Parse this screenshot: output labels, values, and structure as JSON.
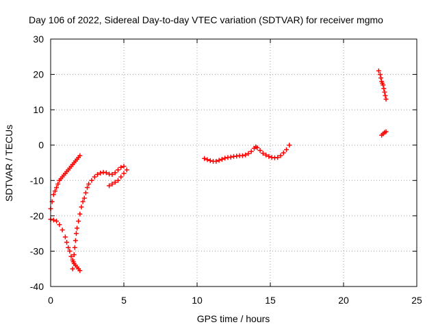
{
  "chart_data": {
    "type": "scatter",
    "title": "Day 106 of 2022, Sidereal Day-to-day VTEC variation (SDTVAR) for receiver mgmo",
    "xlabel": "GPS time / hours",
    "ylabel": "SDTVAR / TECUs",
    "xlim": [
      0,
      25
    ],
    "ylim": [
      -40,
      30
    ],
    "xticks": [
      "0",
      "5",
      "10",
      "15",
      "20",
      "25"
    ],
    "yticks": [
      "30",
      "20",
      "10",
      "0",
      "-10",
      "-20",
      "-30",
      "-40"
    ],
    "grid": true,
    "marker": "plus",
    "color": "#ff0000",
    "series": [
      {
        "points": [
          [
            0.0,
            -18
          ],
          [
            0.1,
            -16
          ],
          [
            0.2,
            -14
          ],
          [
            0.3,
            -13
          ],
          [
            0.4,
            -12
          ],
          [
            0.5,
            -11
          ],
          [
            0.6,
            -10
          ],
          [
            0.7,
            -9.5
          ],
          [
            0.8,
            -9
          ],
          [
            0.9,
            -8.5
          ],
          [
            1.0,
            -8
          ],
          [
            1.1,
            -7.5
          ],
          [
            1.2,
            -7
          ],
          [
            1.3,
            -6.5
          ],
          [
            1.4,
            -6
          ],
          [
            1.5,
            -5.5
          ],
          [
            1.6,
            -5
          ],
          [
            1.7,
            -4.5
          ],
          [
            1.8,
            -4
          ],
          [
            1.9,
            -3.5
          ],
          [
            2.0,
            -3
          ]
        ]
      },
      {
        "points": [
          [
            0.0,
            -21
          ],
          [
            0.2,
            -21.2
          ],
          [
            0.4,
            -21.5
          ],
          [
            0.6,
            -22.5
          ],
          [
            0.8,
            -24
          ],
          [
            1.0,
            -26
          ],
          [
            1.1,
            -27.5
          ],
          [
            1.2,
            -29
          ],
          [
            1.3,
            -30
          ],
          [
            1.4,
            -31.5
          ],
          [
            1.5,
            -32.5
          ],
          [
            1.6,
            -33.5
          ],
          [
            1.7,
            -34
          ],
          [
            1.8,
            -34.5
          ],
          [
            1.9,
            -35
          ],
          [
            2.0,
            -35.5
          ]
        ]
      },
      {
        "points": [
          [
            1.5,
            -35
          ],
          [
            1.55,
            -33
          ],
          [
            1.6,
            -31
          ],
          [
            1.65,
            -29
          ],
          [
            1.7,
            -27
          ],
          [
            1.75,
            -25
          ],
          [
            1.8,
            -23.5
          ],
          [
            1.9,
            -21.5
          ],
          [
            2.0,
            -19.5
          ],
          [
            2.1,
            -17.5
          ],
          [
            2.2,
            -16
          ],
          [
            2.3,
            -15
          ],
          [
            2.4,
            -13.5
          ],
          [
            2.5,
            -12
          ],
          [
            2.6,
            -11
          ],
          [
            2.8,
            -10
          ],
          [
            3.0,
            -9
          ],
          [
            3.2,
            -8.3
          ],
          [
            3.4,
            -7.9
          ],
          [
            3.6,
            -7.7
          ],
          [
            3.8,
            -7.8
          ],
          [
            4.0,
            -8.2
          ],
          [
            4.2,
            -8.3
          ],
          [
            4.4,
            -7.8
          ],
          [
            4.6,
            -7
          ],
          [
            4.8,
            -6.3
          ],
          [
            5.0,
            -6
          ]
        ]
      },
      {
        "points": [
          [
            4.0,
            -11.5
          ],
          [
            4.2,
            -11
          ],
          [
            4.4,
            -10.5
          ],
          [
            4.6,
            -10
          ],
          [
            4.8,
            -9
          ],
          [
            5.0,
            -8
          ],
          [
            5.2,
            -7
          ]
        ]
      },
      {
        "points": [
          [
            10.5,
            -3.8
          ],
          [
            10.7,
            -4.1
          ],
          [
            10.9,
            -4.4
          ],
          [
            11.1,
            -4.6
          ],
          [
            11.3,
            -4.6
          ],
          [
            11.5,
            -4.3
          ],
          [
            11.7,
            -4.0
          ],
          [
            11.9,
            -3.7
          ],
          [
            12.1,
            -3.5
          ],
          [
            12.3,
            -3.4
          ],
          [
            12.5,
            -3.2
          ],
          [
            12.7,
            -3.1
          ],
          [
            12.9,
            -3.0
          ],
          [
            13.1,
            -3.0
          ],
          [
            13.3,
            -2.8
          ],
          [
            13.5,
            -2.4
          ],
          [
            13.7,
            -1.8
          ],
          [
            13.9,
            -0.9
          ],
          [
            14.0,
            -0.5
          ],
          [
            14.1,
            -0.7
          ],
          [
            14.3,
            -1.5
          ],
          [
            14.5,
            -2.3
          ],
          [
            14.7,
            -2.8
          ],
          [
            14.9,
            -3.2
          ],
          [
            15.1,
            -3.5
          ],
          [
            15.3,
            -3.6
          ],
          [
            15.5,
            -3.5
          ],
          [
            15.7,
            -3.0
          ],
          [
            15.9,
            -2.2
          ],
          [
            16.1,
            -1.3
          ],
          [
            16.3,
            0.0
          ]
        ]
      },
      {
        "points": [
          [
            22.4,
            21
          ],
          [
            22.5,
            20
          ],
          [
            22.55,
            19
          ],
          [
            22.6,
            18
          ],
          [
            22.65,
            17.5
          ],
          [
            22.7,
            17
          ],
          [
            22.75,
            16
          ],
          [
            22.8,
            15
          ],
          [
            22.85,
            14
          ],
          [
            22.9,
            13
          ]
        ]
      },
      {
        "points": [
          [
            22.6,
            2.8
          ],
          [
            22.7,
            3.2
          ],
          [
            22.8,
            3.6
          ],
          [
            22.9,
            3.8
          ]
        ]
      }
    ]
  }
}
